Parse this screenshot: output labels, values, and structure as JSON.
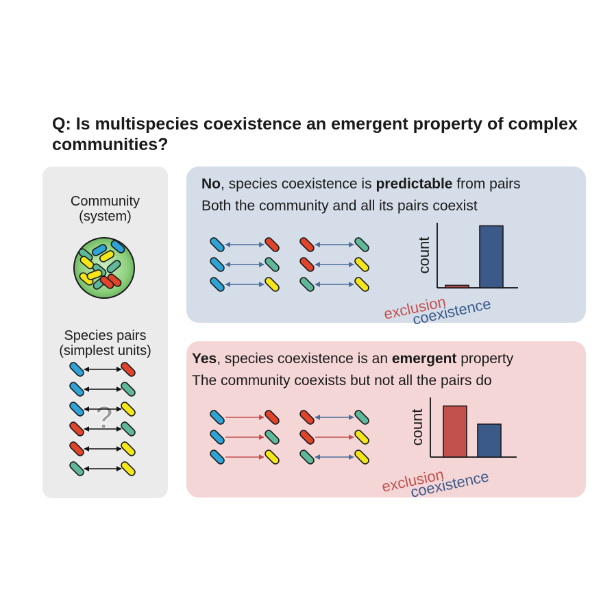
{
  "title": "Q: Is multispecies coexistence an emergent property of complex communities?",
  "left": {
    "community_label_1": "Community",
    "community_label_2": "(system)",
    "pairs_label_1": "Species pairs",
    "pairs_label_2": "(simplest units)",
    "question_mark": "?"
  },
  "no_panel": {
    "lead": "No",
    "text_a": ", species coexistence is ",
    "emph": "predictable",
    "text_b": " from pairs",
    "line2": "Both the community and all its pairs coexist"
  },
  "yes_panel": {
    "lead": "Yes",
    "text_a": ", species coexistence is an ",
    "emph": "emergent",
    "text_b": " property",
    "line2": "The community coexists but not all the pairs do"
  },
  "colors": {
    "blue_species": "#2ea3d6",
    "red_species": "#e0452b",
    "green_species": "#5fb89a",
    "yellow_species": "#f5e61a",
    "exclusion": "#c2504d",
    "coexistence": "#3b5a8a",
    "no_arrow": "#4a6d9a",
    "yes_arrow": "#c2504d"
  },
  "chart_data": [
    {
      "type": "bar",
      "categories": [
        "exclusion",
        "coexistence"
      ],
      "values": [
        0.04,
        1.0
      ],
      "ylabel": "count",
      "ylim": [
        0,
        1.05
      ],
      "grid": false
    },
    {
      "type": "bar",
      "categories": [
        "exclusion",
        "coexistence"
      ],
      "values": [
        0.9,
        0.58
      ],
      "ylabel": "count",
      "ylim": [
        0,
        1.05
      ],
      "grid": false
    }
  ]
}
